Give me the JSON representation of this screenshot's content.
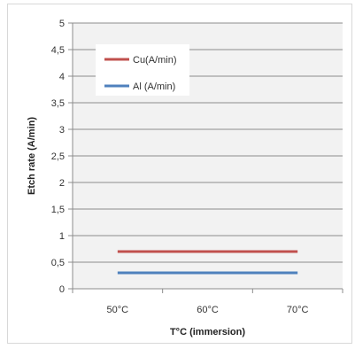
{
  "chart_data": {
    "type": "line",
    "categories": [
      "50°C",
      "60°C",
      "70°C"
    ],
    "series": [
      {
        "name": "Cu(A/min)",
        "values": [
          0.7,
          0.7,
          0.7
        ],
        "color": "#c0504d"
      },
      {
        "name": "Al (A/min)",
        "values": [
          0.3,
          0.3,
          0.3
        ],
        "color": "#4f81bd"
      }
    ],
    "xlabel": "T°C (immersion)",
    "ylabel": "Etch rate (A/min)",
    "ylim": [
      0,
      5
    ],
    "yticks": [
      "0",
      "0,5",
      "1",
      "1,5",
      "2",
      "2,5",
      "3",
      "3,5",
      "4",
      "4,5",
      "5"
    ],
    "grid": true,
    "legend_position": "top-left"
  }
}
